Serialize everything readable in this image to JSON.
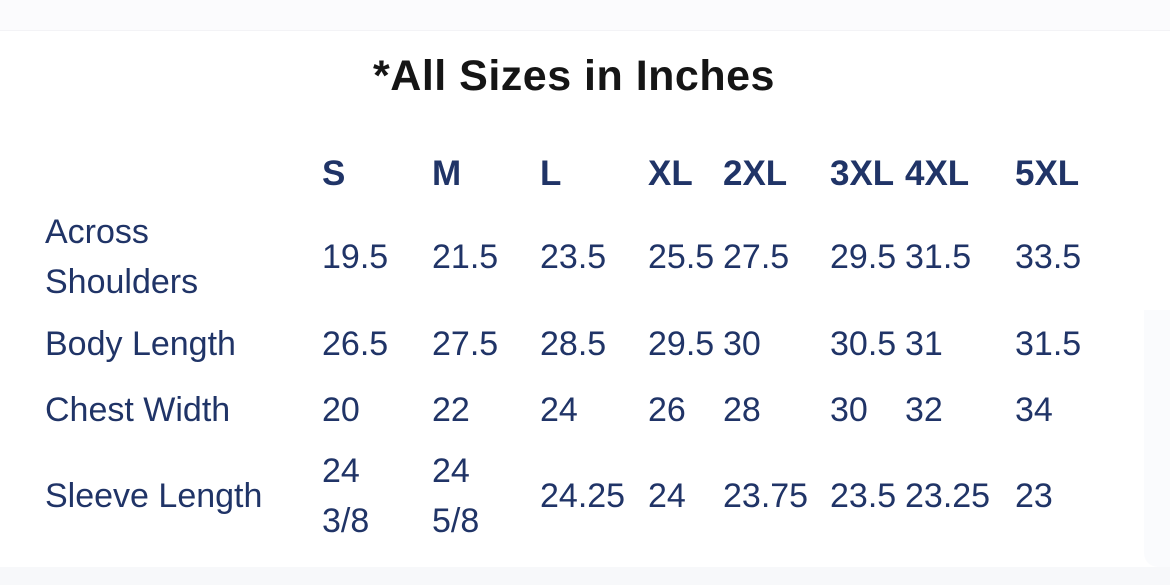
{
  "title": "*All Sizes in Inches",
  "table": {
    "columns": [
      "S",
      "M",
      "L",
      "XL",
      "2XL",
      "3XL",
      "4XL",
      "5XL"
    ],
    "rows": [
      {
        "label": "Across Shoulders",
        "values": [
          "19.5",
          "21.5",
          "23.5",
          "25.5",
          "27.5",
          "29.5",
          "31.5",
          "33.5"
        ]
      },
      {
        "label": "Body Length",
        "values": [
          "26.5",
          "27.5",
          "28.5",
          "29.5",
          "30",
          "30.5",
          "31",
          "31.5"
        ]
      },
      {
        "label": "Chest Width",
        "values": [
          "20",
          "22",
          "24",
          "26",
          "28",
          "30",
          "32",
          "34"
        ]
      },
      {
        "label": "Sleeve Length",
        "values": [
          "24 3/8",
          "24 5/8",
          "24.25",
          "24",
          "23.75",
          "23.5",
          "23.25",
          "23"
        ]
      }
    ]
  },
  "colors": {
    "table_text_navy": "#203467",
    "title_black": "#151515",
    "page_band_gray": "#f7f8fa",
    "card_white": "#ffffff"
  },
  "chart_data": {
    "type": "table",
    "title": "*All Sizes in Inches",
    "columns": [
      "S",
      "M",
      "L",
      "XL",
      "2XL",
      "3XL",
      "4XL",
      "5XL"
    ],
    "row_labels": [
      "Across Shoulders",
      "Body Length",
      "Chest Width",
      "Sleeve Length"
    ],
    "series": [
      {
        "name": "Across Shoulders",
        "values": [
          "19.5",
          "21.5",
          "23.5",
          "25.5",
          "27.5",
          "29.5",
          "31.5",
          "33.5"
        ]
      },
      {
        "name": "Body Length",
        "values": [
          "26.5",
          "27.5",
          "28.5",
          "29.5",
          "30",
          "30.5",
          "31",
          "31.5"
        ]
      },
      {
        "name": "Chest Width",
        "values": [
          "20",
          "22",
          "24",
          "26",
          "28",
          "30",
          "32",
          "34"
        ]
      },
      {
        "name": "Sleeve Length",
        "values": [
          "24 3/8",
          "24 5/8",
          "24.25",
          "24",
          "23.75",
          "23.5",
          "23.25",
          "23"
        ]
      }
    ],
    "units": "inches"
  }
}
